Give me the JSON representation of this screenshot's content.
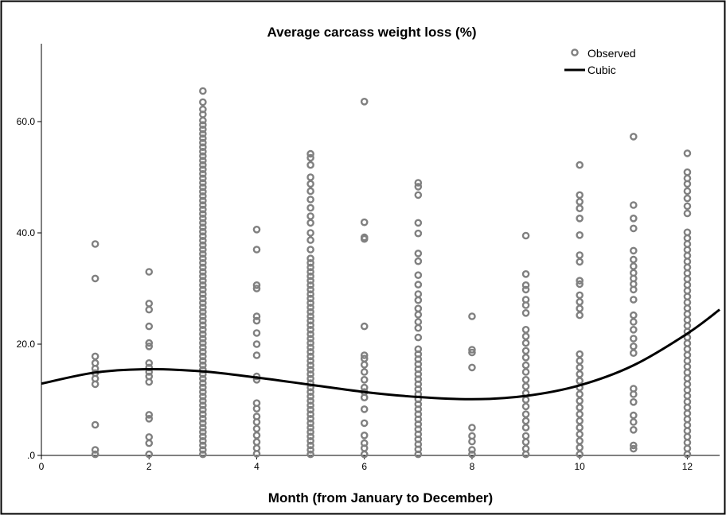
{
  "chart_data": {
    "type": "scatter",
    "title": "Average carcass weight loss (%)",
    "xlabel": "Month (from January to December)",
    "ylabel": "",
    "xlim": [
      0,
      12.6
    ],
    "ylim": [
      0,
      74
    ],
    "x_ticks": [
      {
        "value": 0,
        "label": "0"
      },
      {
        "value": 2,
        "label": "2"
      },
      {
        "value": 4,
        "label": "4"
      },
      {
        "value": 6,
        "label": "6"
      },
      {
        "value": 8,
        "label": "8"
      },
      {
        "value": 10,
        "label": "10"
      },
      {
        "value": 12,
        "label": "12"
      }
    ],
    "y_ticks": [
      {
        "value": 0,
        "label": ".0"
      },
      {
        "value": 20,
        "label": "20.0"
      },
      {
        "value": 40,
        "label": "40.0"
      },
      {
        "value": 60,
        "label": "60.0"
      }
    ],
    "grid": false,
    "legend": {
      "placement": "top-right",
      "entries": [
        {
          "label": "Observed",
          "marker": "circle"
        },
        {
          "label": "Cubic",
          "marker": "line"
        }
      ]
    },
    "series": [
      {
        "name": "Observed",
        "type": "scatter",
        "color": "#808080",
        "points": [
          {
            "x": 1,
            "y": [
              0.2,
              1.0,
              5.5,
              12.8,
              13.8,
              14.8,
              15.6,
              16.6,
              17.8,
              31.8,
              38.0
            ]
          },
          {
            "x": 2,
            "y": [
              0.2,
              2.2,
              3.3,
              6.6,
              7.3,
              13.2,
              14.2,
              15.0,
              15.8,
              16.6,
              19.6,
              20.2,
              23.2,
              26.2,
              27.3,
              33.0
            ]
          },
          {
            "x": 3,
            "range": [
              0.2,
              59.5
            ],
            "step": 0.8,
            "y": [
              60.2,
              61.3,
              62.2,
              63.5,
              65.5
            ]
          },
          {
            "x": 4,
            "y": [
              0.3,
              1.3,
              2.4,
              3.6,
              4.8,
              6.0,
              7.0,
              8.4,
              9.4,
              13.6,
              14.2,
              18.0,
              20.0,
              22.0,
              24.2,
              25.0,
              30.0,
              30.6,
              37.0,
              40.6
            ]
          },
          {
            "x": 5,
            "range": [
              0.2,
              35.5
            ],
            "step": 0.8,
            "y": [
              37.0,
              38.7,
              40.0,
              41.8,
              43.0,
              44.5,
              46.0,
              47.5,
              48.8,
              50.0,
              52.2,
              53.5,
              54.2
            ]
          },
          {
            "x": 6,
            "y": [
              0.2,
              1.3,
              2.2,
              3.6,
              5.8,
              8.3,
              10.4,
              11.4,
              12.2,
              13.6,
              15.0,
              16.3,
              17.4,
              18.0,
              23.2,
              38.9,
              39.2,
              41.9,
              63.6
            ]
          },
          {
            "x": 7,
            "range": [
              0.2,
              19.6
            ],
            "step": 0.9,
            "y": [
              21.2,
              22.9,
              24.0,
              25.3,
              26.4,
              27.9,
              29.0,
              30.7,
              32.4,
              34.9,
              36.3,
              39.9,
              41.8,
              46.8,
              48.3,
              49.0
            ]
          },
          {
            "x": 8,
            "y": [
              0.2,
              1.0,
              2.5,
              3.5,
              5.0,
              15.8,
              18.5,
              19.0,
              25.0
            ]
          },
          {
            "x": 9,
            "y": [
              0.2,
              1.2,
              2.4,
              3.5,
              5.0,
              6.2,
              7.4,
              8.8,
              10.0,
              11.2,
              12.4,
              13.6,
              15.0,
              16.2,
              17.6,
              18.8,
              20.2,
              21.4,
              22.6,
              25.6,
              27.0,
              28.0,
              29.8,
              30.6,
              32.6,
              39.5
            ]
          },
          {
            "x": 10,
            "y": [
              0.2,
              1.4,
              2.6,
              3.8,
              5.0,
              6.2,
              7.4,
              8.6,
              9.8,
              11.0,
              12.2,
              13.4,
              14.6,
              15.8,
              17.0,
              18.2,
              25.2,
              26.4,
              27.6,
              28.8,
              30.8,
              31.4,
              34.8,
              36.0,
              39.6,
              42.6,
              44.4,
              45.6,
              46.8,
              52.2
            ]
          },
          {
            "x": 11,
            "y": [
              1.2,
              1.8,
              4.6,
              6.0,
              7.2,
              9.6,
              11.0,
              12.0,
              18.4,
              19.6,
              21.0,
              22.6,
              24.0,
              25.2,
              28.0,
              29.8,
              30.8,
              31.8,
              32.8,
              34.0,
              35.2,
              36.8,
              40.8,
              42.6,
              45.0,
              57.3
            ]
          },
          {
            "x": 12,
            "range": [
              0.2,
              41.0
            ],
            "step": 1.05,
            "y": [
              43.5,
              44.8,
              46.2,
              47.5,
              48.8,
              49.8,
              50.9,
              54.3
            ]
          }
        ]
      },
      {
        "name": "Cubic",
        "type": "line",
        "color": "#000000",
        "x": [
          0,
          1,
          2,
          3,
          4,
          5,
          6,
          7,
          8,
          9,
          10,
          11,
          12,
          12.6
        ],
        "y": [
          12.9,
          14.9,
          15.5,
          15.1,
          14.0,
          12.7,
          11.4,
          10.5,
          10.1,
          10.7,
          12.6,
          16.2,
          21.9,
          26.2
        ]
      }
    ]
  }
}
